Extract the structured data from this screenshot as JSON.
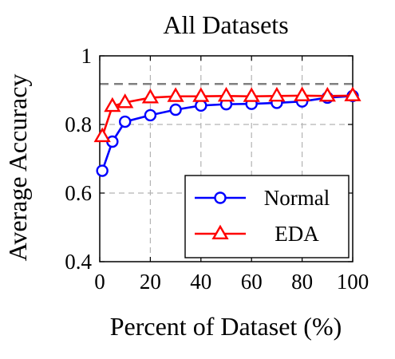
{
  "chart_data": {
    "type": "line",
    "title": "All Datasets",
    "xlabel": "Percent of Dataset (%)",
    "ylabel": "Average Accuracy",
    "xlim": [
      0,
      100
    ],
    "ylim": [
      0.4,
      1.0
    ],
    "x_ticks": [
      0,
      20,
      40,
      60,
      80,
      100
    ],
    "y_ticks": [
      0.4,
      0.6,
      0.8,
      1.0
    ],
    "x_tick_labels": [
      "0",
      "20",
      "40",
      "60",
      "80",
      "100"
    ],
    "y_tick_labels": [
      "0.4",
      "0.6",
      "0.8",
      "1"
    ],
    "grid": true,
    "reference_line": {
      "y": 0.918,
      "color": "#808080",
      "style": "dashed"
    },
    "legend_position": "bottom-right",
    "series": [
      {
        "name": "Normal",
        "color": "#0000ff",
        "marker": "circle",
        "x": [
          1,
          5,
          10,
          20,
          30,
          40,
          50,
          60,
          70,
          80,
          90,
          100
        ],
        "y": [
          0.665,
          0.75,
          0.808,
          0.827,
          0.843,
          0.855,
          0.859,
          0.86,
          0.863,
          0.867,
          0.878,
          0.883
        ]
      },
      {
        "name": "EDA",
        "color": "#ff0000",
        "marker": "triangle",
        "x": [
          1,
          5,
          10,
          20,
          30,
          40,
          50,
          60,
          70,
          80,
          90,
          100
        ],
        "y": [
          0.765,
          0.853,
          0.864,
          0.878,
          0.882,
          0.882,
          0.883,
          0.882,
          0.883,
          0.884,
          0.883,
          0.884
        ]
      }
    ]
  }
}
